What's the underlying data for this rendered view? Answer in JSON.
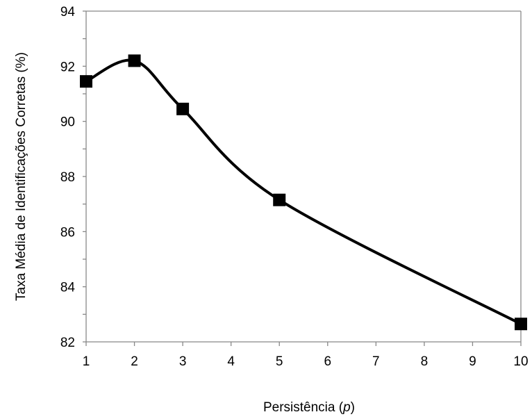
{
  "chart_data": {
    "type": "line",
    "title": "",
    "xlabel_text": "Persistência (",
    "xlabel_var": "p",
    "xlabel_close": ")",
    "ylabel": "Taxa Média de Identificações Corretas (%)",
    "x_categories": [
      "1",
      "2",
      "3",
      "4",
      "5",
      "6",
      "7",
      "8",
      "9",
      "10"
    ],
    "x": [
      1,
      2,
      3,
      5,
      10
    ],
    "y": [
      91.45,
      92.2,
      90.45,
      87.15,
      82.65
    ],
    "ylim": [
      82,
      94
    ],
    "yticks": [
      82,
      84,
      86,
      88,
      90,
      92,
      94
    ],
    "grid": false,
    "marker": "square",
    "smoothed": true,
    "line_color": "#000000",
    "marker_color": "#000000"
  }
}
